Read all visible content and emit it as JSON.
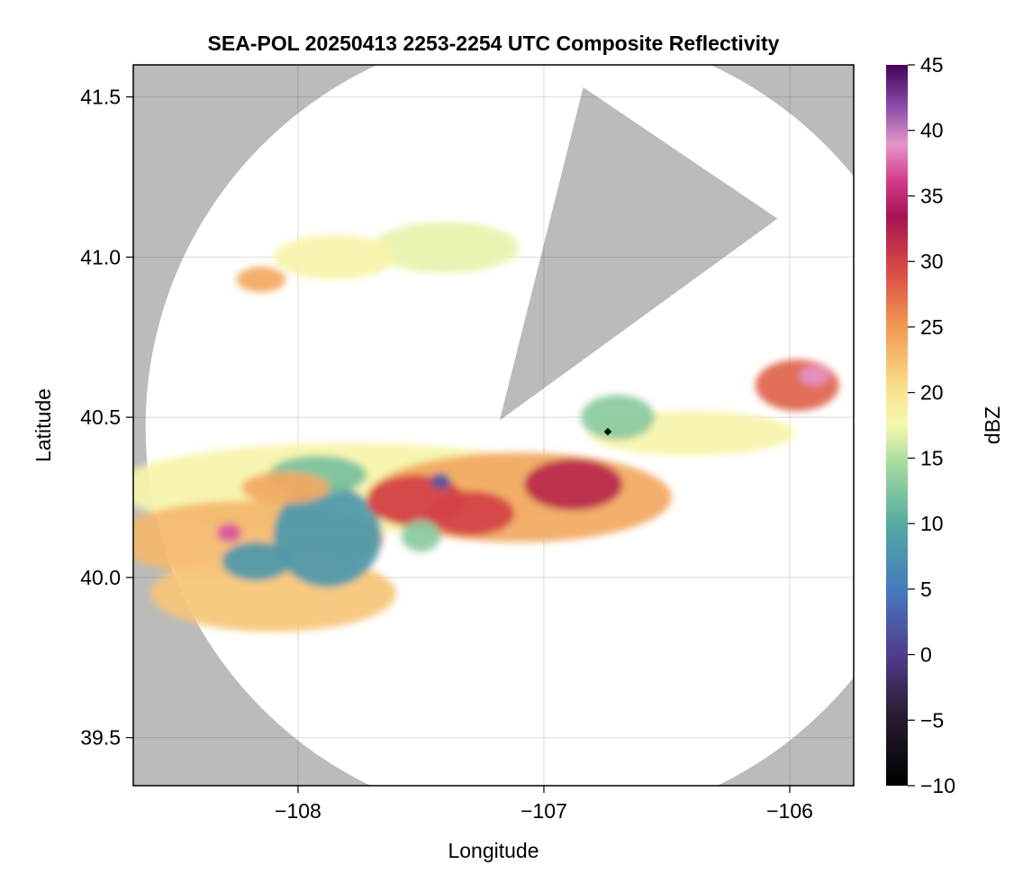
{
  "chart_data": {
    "type": "heatmap",
    "title": "SEA-POL 20250413 2253-2254 UTC Composite Reflectivity",
    "xlabel": "Longitude",
    "ylabel": "Latitude",
    "xlim": [
      -108.67,
      -105.74
    ],
    "ylim": [
      39.35,
      41.6
    ],
    "xticks": [
      -108,
      -107,
      -106
    ],
    "xtick_labels": [
      "−108",
      "−107",
      "−106"
    ],
    "yticks": [
      39.5,
      40.0,
      40.5,
      41.0,
      41.5
    ],
    "ytick_labels": [
      "39.5",
      "40.0",
      "40.5",
      "41.0",
      "41.5"
    ],
    "grid": true,
    "background_color": "#bbbbbb",
    "radar": {
      "center": [
        -107.0,
        40.47
      ],
      "range_radius_lon": 1.62,
      "blocked_sector_from_center": [
        [
          -107.18,
          40.49
        ],
        [
          -106.84,
          41.53
        ],
        [
          -106.05,
          41.12
        ]
      ],
      "site_marker": [
        -106.74,
        40.455
      ]
    },
    "colorbar": {
      "label": "dBZ",
      "range": [
        -10,
        45
      ],
      "ticks": [
        -10,
        -5,
        0,
        5,
        10,
        15,
        20,
        25,
        30,
        35,
        40,
        45
      ],
      "tick_labels": [
        "−10",
        "−5",
        "0",
        "5",
        "10",
        "15",
        "20",
        "25",
        "30",
        "35",
        "40",
        "45"
      ],
      "colormap": "spectral_reversed"
    },
    "echo_regions": [
      {
        "lon": -107.8,
        "lat": 40.28,
        "dlon": 0.95,
        "dlat": 0.14,
        "dbz": 18
      },
      {
        "lon": -108.2,
        "lat": 40.12,
        "dlon": 0.55,
        "dlat": 0.12,
        "dbz": 23
      },
      {
        "lon": -108.1,
        "lat": 39.95,
        "dlon": 0.5,
        "dlat": 0.12,
        "dbz": 22
      },
      {
        "lon": -107.88,
        "lat": 40.13,
        "dlon": 0.22,
        "dlat": 0.16,
        "dbz": 8
      },
      {
        "lon": -108.17,
        "lat": 40.05,
        "dlon": 0.14,
        "dlat": 0.06,
        "dbz": 8
      },
      {
        "lon": -107.92,
        "lat": 40.32,
        "dlon": 0.2,
        "dlat": 0.06,
        "dbz": 12
      },
      {
        "lon": -108.05,
        "lat": 40.28,
        "dlon": 0.18,
        "dlat": 0.05,
        "dbz": 24
      },
      {
        "lon": -107.1,
        "lat": 40.25,
        "dlon": 0.62,
        "dlat": 0.14,
        "dbz": 24
      },
      {
        "lon": -107.52,
        "lat": 40.24,
        "dlon": 0.2,
        "dlat": 0.08,
        "dbz": 30
      },
      {
        "lon": -106.88,
        "lat": 40.29,
        "dlon": 0.2,
        "dlat": 0.08,
        "dbz": 32
      },
      {
        "lon": -107.3,
        "lat": 40.2,
        "dlon": 0.18,
        "dlat": 0.07,
        "dbz": 30
      },
      {
        "lon": -106.4,
        "lat": 40.45,
        "dlon": 0.42,
        "dlat": 0.07,
        "dbz": 18
      },
      {
        "lon": -105.97,
        "lat": 40.6,
        "dlon": 0.17,
        "dlat": 0.08,
        "dbz": 28
      },
      {
        "lon": -105.9,
        "lat": 40.63,
        "dlon": 0.06,
        "dlat": 0.03,
        "dbz": 39
      },
      {
        "lon": -106.7,
        "lat": 40.5,
        "dlon": 0.15,
        "dlat": 0.07,
        "dbz": 13
      },
      {
        "lon": -107.4,
        "lat": 41.03,
        "dlon": 0.3,
        "dlat": 0.08,
        "dbz": 17
      },
      {
        "lon": -107.85,
        "lat": 41.0,
        "dlon": 0.25,
        "dlat": 0.07,
        "dbz": 18
      },
      {
        "lon": -108.15,
        "lat": 40.93,
        "dlon": 0.1,
        "dlat": 0.04,
        "dbz": 24
      },
      {
        "lon": -107.5,
        "lat": 40.13,
        "dlon": 0.08,
        "dlat": 0.05,
        "dbz": 13
      },
      {
        "lon": -107.42,
        "lat": 40.3,
        "dlon": 0.04,
        "dlat": 0.025,
        "dbz": 2
      },
      {
        "lon": -108.28,
        "lat": 40.14,
        "dlon": 0.05,
        "dlat": 0.03,
        "dbz": 37
      }
    ]
  }
}
